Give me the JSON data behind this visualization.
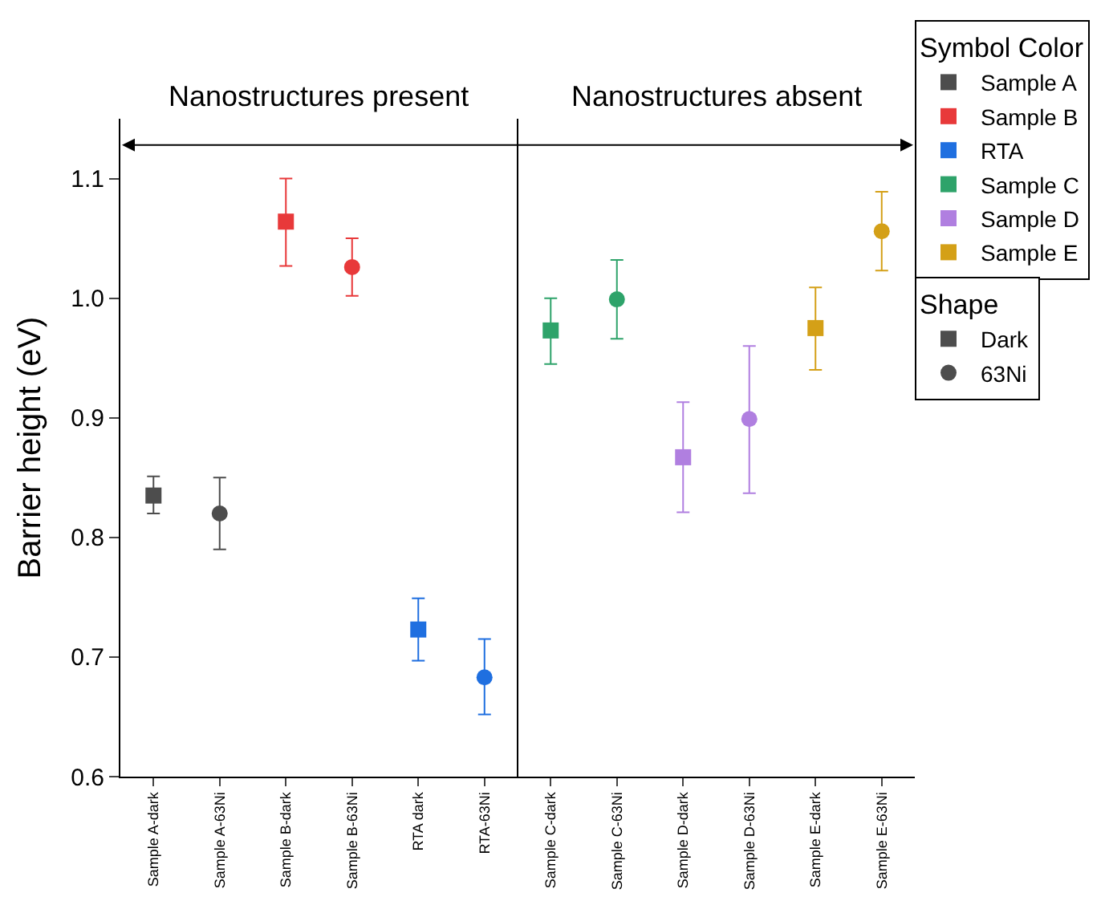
{
  "chart_data": {
    "type": "scatter",
    "ylabel": "Barrier height (eV)",
    "categories": [
      "Sample A-dark",
      "Sample A-63Ni",
      "Sample B-dark",
      "Sample B-63Ni",
      "RTA dark",
      "RTA-63Ni",
      "Sample C-dark",
      "Sample C-63Ni",
      "Sample D-dark",
      "Sample D-63Ni",
      "Sample E-dark",
      "Sample E-63Ni"
    ],
    "ylim": [
      0.6,
      1.15
    ],
    "yticks": [
      0.6,
      0.7,
      0.8,
      0.9,
      {
        "value": 1.0,
        "label": "1.0"
      },
      1.1
    ],
    "grid": false,
    "legend": "top right",
    "legend_title": [
      "Symbol Color",
      "Shape"
    ],
    "annotations": [
      "Nanostructures present",
      "Nanostructures absent"
    ],
    "series": [
      {
        "name": "Sample A",
        "color": "#4d4d4d",
        "values": [
          null,
          null,
          null,
          null,
          null,
          null,
          null,
          null,
          null,
          null,
          null,
          null
        ]
      },
      {
        "name": "Sample B",
        "color": "#e8393a",
        "values": [
          null,
          null,
          null,
          null,
          null,
          null,
          null,
          null,
          null,
          null,
          null,
          null
        ]
      },
      {
        "name": "RTA",
        "color": "#1f6fe0",
        "values": [
          null,
          null,
          null,
          null,
          null,
          null,
          null,
          null,
          null,
          null,
          null,
          null
        ]
      },
      {
        "name": "Sample C",
        "color": "#2ea36a",
        "values": [
          null,
          null,
          null,
          null,
          null,
          null,
          null,
          null,
          null,
          null,
          null,
          null
        ]
      },
      {
        "name": "Sample D",
        "color": "#b07fe0",
        "values": [
          null,
          null,
          null,
          null,
          null,
          null,
          null,
          null,
          null,
          null,
          null,
          null
        ]
      },
      {
        "name": "Sample E",
        "color": "#d4a017",
        "values": [
          null,
          null,
          null,
          null,
          null,
          null,
          null,
          null,
          null,
          null,
          null,
          null
        ]
      },
      {
        "name": "Dark",
        "color": "#000000",
        "marker": "square",
        "colors": [
          "#4d4d4d",
          null,
          "#e8393a",
          null,
          "#1f6fe0",
          null,
          "#2ea36a",
          null,
          "#b07fe0",
          null,
          "#d4a017",
          null
        ],
        "values": [
          0.835,
          null,
          1.064,
          null,
          0.723,
          null,
          0.973,
          null,
          0.867,
          null,
          0.975,
          null
        ],
        "errors": [
          [
            0.82,
            0.851
          ],
          null,
          [
            1.027,
            1.1
          ],
          null,
          [
            0.697,
            0.749
          ],
          null,
          [
            0.945,
            1.0
          ],
          null,
          [
            0.821,
            0.913
          ],
          null,
          [
            0.94,
            1.009
          ],
          null
        ]
      },
      {
        "name": "63Ni",
        "color": "#000000",
        "marker": "circle",
        "colors": [
          null,
          "#4d4d4d",
          null,
          "#e8393a",
          null,
          "#1f6fe0",
          null,
          "#2ea36a",
          null,
          "#b07fe0",
          null,
          "#d4a017"
        ],
        "values": [
          null,
          0.82,
          null,
          1.026,
          null,
          0.683,
          null,
          0.999,
          null,
          0.899,
          null,
          1.056
        ],
        "errors": [
          null,
          [
            0.79,
            0.85
          ],
          null,
          [
            1.002,
            1.05
          ],
          null,
          [
            0.652,
            0.715
          ],
          null,
          [
            0.966,
            1.032
          ],
          null,
          [
            0.837,
            0.96
          ],
          null,
          [
            1.023,
            1.089
          ]
        ]
      }
    ]
  }
}
